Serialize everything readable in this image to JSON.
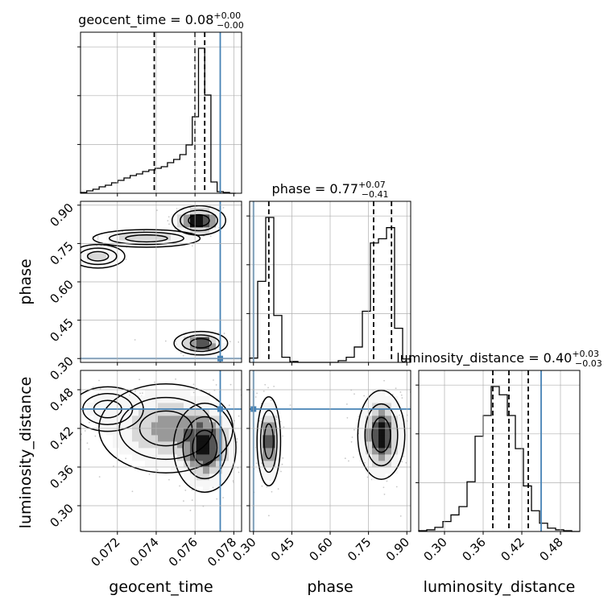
{
  "chart_data": {
    "type": "corner",
    "parameters": [
      {
        "name": "geocent_time",
        "xlabel": "geocent_time",
        "ylabel": "",
        "title": {
          "prefix": "geocent_time = 0.08",
          "sup": "+0.00",
          "sub": "−0.00"
        },
        "range": [
          0.0701,
          0.0784
        ],
        "ticks": [
          0.072,
          0.074,
          0.076,
          0.078
        ],
        "tick_labels": [
          "0.072",
          "0.074",
          "0.076",
          "0.078"
        ],
        "truth": 0.0773,
        "quantiles": [
          0.0739,
          0.076,
          0.0765
        ],
        "hist": {
          "edges": [
            0.0701,
            0.07042,
            0.07074,
            0.07106,
            0.07138,
            0.0717,
            0.07202,
            0.07234,
            0.07266,
            0.07298,
            0.0733,
            0.07362,
            0.07394,
            0.07426,
            0.07458,
            0.0749,
            0.07522,
            0.07554,
            0.07586,
            0.07618,
            0.0765,
            0.07682,
            0.07714,
            0.07746,
            0.07778,
            0.0781
          ],
          "counts": [
            1,
            3,
            5,
            8,
            10,
            13,
            16,
            19,
            22,
            24,
            27,
            29,
            31,
            33,
            38,
            42,
            48,
            60,
            95,
            180,
            122,
            14,
            2,
            1,
            0
          ]
        }
      },
      {
        "name": "phase",
        "xlabel": "phase",
        "ylabel": "phase",
        "title": {
          "prefix": "phase = 0.77",
          "sup": "+0.07",
          "sub": "−0.41"
        },
        "range": [
          0.285,
          0.915
        ],
        "ticks": [
          0.3,
          0.45,
          0.6,
          0.75,
          0.9
        ],
        "tick_labels": [
          "0.30",
          "0.45",
          "0.60",
          "0.75",
          "0.90"
        ],
        "truth": 0.3,
        "quantiles": [
          0.36,
          0.77,
          0.84
        ],
        "hist": {
          "edges": [
            0.285,
            0.3165,
            0.348,
            0.3795,
            0.411,
            0.4425,
            0.474,
            0.5055,
            0.537,
            0.5685,
            0.6,
            0.6315,
            0.663,
            0.6945,
            0.726,
            0.7575,
            0.789,
            0.8205,
            0.852,
            0.8835,
            0.915
          ],
          "counts": [
            5,
            95,
            170,
            55,
            6,
            1,
            0,
            0,
            0,
            0,
            0,
            2,
            6,
            18,
            60,
            140,
            145,
            158,
            40,
            4
          ]
        }
      },
      {
        "name": "luminosity_distance",
        "xlabel": "luminosity_distance",
        "ylabel": "luminosity_distance",
        "title": {
          "prefix": "luminosity_distance = 0.40",
          "sup": "+0.03",
          "sub": "−0.03"
        },
        "range": [
          0.26,
          0.51
        ],
        "ticks": [
          0.3,
          0.36,
          0.42,
          0.48
        ],
        "tick_labels": [
          "0.30",
          "0.36",
          "0.42",
          "0.48"
        ],
        "truth": 0.45,
        "quantiles": [
          0.375,
          0.4,
          0.43
        ],
        "hist": {
          "edges": [
            0.26,
            0.2725,
            0.285,
            0.2975,
            0.31,
            0.3225,
            0.335,
            0.3475,
            0.36,
            0.3725,
            0.385,
            0.3975,
            0.41,
            0.4225,
            0.435,
            0.4475,
            0.46,
            0.4725,
            0.485,
            0.4975,
            0.51
          ],
          "counts": [
            1,
            2,
            5,
            12,
            20,
            30,
            60,
            115,
            140,
            175,
            165,
            140,
            100,
            55,
            25,
            10,
            4,
            2,
            1,
            0
          ]
        }
      }
    ],
    "pairs": [
      {
        "x": "geocent_time",
        "y": "phase",
        "samples_description": "density contours",
        "modes": [
          {
            "x": 0.0762,
            "y": 0.84,
            "sx": 0.0006,
            "sy": 0.025,
            "weight": 0.35
          },
          {
            "x": 0.0763,
            "y": 0.36,
            "sx": 0.0006,
            "sy": 0.02,
            "weight": 0.28
          },
          {
            "x": 0.0735,
            "y": 0.77,
            "sx": 0.0012,
            "sy": 0.015,
            "weight": 0.15
          },
          {
            "x": 0.071,
            "y": 0.7,
            "sx": 0.0006,
            "sy": 0.02,
            "weight": 0.1
          }
        ],
        "truth": {
          "x": 0.0773,
          "y": 0.3
        }
      },
      {
        "x": "geocent_time",
        "y": "luminosity_distance",
        "modes": [
          {
            "x": 0.0765,
            "y": 0.39,
            "sx": 0.0007,
            "sy": 0.03,
            "weight": 0.5
          },
          {
            "x": 0.0745,
            "y": 0.42,
            "sx": 0.0015,
            "sy": 0.03,
            "weight": 0.3
          },
          {
            "x": 0.0715,
            "y": 0.45,
            "sx": 0.0008,
            "sy": 0.015,
            "weight": 0.1
          }
        ],
        "truth": {
          "x": 0.0773,
          "y": 0.45
        }
      },
      {
        "x": "phase",
        "y": "luminosity_distance",
        "modes": [
          {
            "x": 0.36,
            "y": 0.4,
            "sx": 0.02,
            "sy": 0.03,
            "weight": 0.45
          },
          {
            "x": 0.8,
            "y": 0.41,
            "sx": 0.04,
            "sy": 0.03,
            "weight": 0.55
          }
        ],
        "truth": {
          "x": 0.3,
          "y": 0.45
        }
      }
    ],
    "colors": {
      "truth": "#4682b4",
      "hist": "#000000",
      "grid": "#b0b0b0",
      "quantile": "#000000"
    }
  }
}
